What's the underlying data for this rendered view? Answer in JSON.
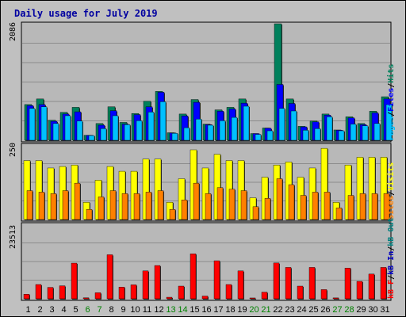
{
  "chart_data": [
    {
      "type": "bar",
      "title": "Daily usage for July 2019",
      "ymax_label": "2086",
      "ylim": [
        0,
        2086
      ],
      "legend": {
        "hits": "Hits",
        "files": "Files",
        "pages": "Pages",
        "sep1": "/",
        "sep2": "/"
      },
      "colors": {
        "hits": "#00805c",
        "files": "#0000ff",
        "pages": "#00c0ff"
      },
      "categories": [
        "1",
        "2",
        "3",
        "4",
        "5",
        "6",
        "7",
        "8",
        "9",
        "10",
        "11",
        "12",
        "13",
        "14",
        "15",
        "16",
        "17",
        "18",
        "19",
        "20",
        "21",
        "22",
        "23",
        "24",
        "25",
        "26",
        "27",
        "28",
        "29",
        "30",
        "31"
      ],
      "weekend_days": [
        "6",
        "7",
        "13",
        "14",
        "20",
        "21",
        "27",
        "28"
      ],
      "series": [
        {
          "name": "Hits",
          "key": "hits",
          "values": [
            640,
            740,
            360,
            500,
            590,
            90,
            300,
            600,
            320,
            480,
            700,
            875,
            135,
            470,
            730,
            290,
            545,
            590,
            740,
            120,
            220,
            2086,
            740,
            250,
            345,
            470,
            185,
            420,
            300,
            520,
            780
          ]
        },
        {
          "name": "Files",
          "key": "files",
          "values": [
            620,
            640,
            340,
            470,
            510,
            90,
            270,
            530,
            290,
            460,
            600,
            860,
            130,
            435,
            680,
            280,
            520,
            560,
            665,
            120,
            215,
            1000,
            660,
            240,
            330,
            450,
            180,
            400,
            280,
            490,
            740
          ]
        },
        {
          "name": "Pages",
          "key": "pages",
          "values": [
            570,
            600,
            300,
            440,
            345,
            85,
            210,
            440,
            280,
            350,
            505,
            690,
            125,
            225,
            380,
            270,
            350,
            410,
            610,
            105,
            170,
            570,
            525,
            180,
            210,
            420,
            170,
            290,
            260,
            300,
            640
          ]
        }
      ]
    },
    {
      "type": "bar",
      "ymax_label": "250",
      "ylim": [
        0,
        250
      ],
      "legend": {
        "visits": "Visits",
        "sites": "Sites",
        "sep": "/"
      },
      "colors": {
        "visits": "#ffff00",
        "sites": "#ff8000"
      },
      "categories": [
        "1",
        "2",
        "3",
        "4",
        "5",
        "6",
        "7",
        "8",
        "9",
        "10",
        "11",
        "12",
        "13",
        "14",
        "15",
        "16",
        "17",
        "18",
        "19",
        "20",
        "21",
        "22",
        "23",
        "24",
        "25",
        "26",
        "27",
        "28",
        "29",
        "30",
        "31"
      ],
      "series": [
        {
          "name": "Visits",
          "key": "visits",
          "values": [
            198,
            198,
            173,
            178,
            183,
            58,
            132,
            178,
            162,
            162,
            203,
            203,
            58,
            137,
            234,
            173,
            219,
            198,
            198,
            73,
            142,
            183,
            193,
            142,
            173,
            239,
            58,
            183,
            209,
            209,
            209
          ]
        },
        {
          "name": "Sites",
          "key": "sites",
          "values": [
            97,
            92,
            87,
            97,
            122,
            34,
            76,
            97,
            87,
            87,
            92,
            97,
            34,
            66,
            122,
            87,
            107,
            102,
            97,
            43,
            71,
            137,
            117,
            81,
            92,
            92,
            39,
            81,
            87,
            87,
            87
          ]
        }
      ]
    },
    {
      "type": "bar",
      "ymax_label": "23513",
      "ylim": [
        0,
        23513
      ],
      "legend": {
        "kbf": "kB F",
        "kbin": "kB In",
        "kbout": "kB Out",
        "sep1": "/",
        "sep2": "/"
      },
      "colors": {
        "kbf": "#ff0000",
        "kbin": "#0000c0",
        "kbout": "#008080"
      },
      "categories": [
        "1",
        "2",
        "3",
        "4",
        "5",
        "6",
        "7",
        "8",
        "9",
        "10",
        "11",
        "12",
        "13",
        "14",
        "15",
        "16",
        "17",
        "18",
        "19",
        "20",
        "21",
        "22",
        "23",
        "24",
        "25",
        "26",
        "27",
        "28",
        "29",
        "30",
        "31"
      ],
      "series": [
        {
          "name": "kB F",
          "key": "kbf",
          "values": [
            1450,
            4500,
            3600,
            4100,
            11250,
            300,
            1900,
            13900,
            3700,
            4400,
            8800,
            10500,
            490,
            4000,
            14200,
            860,
            12000,
            4500,
            8800,
            260,
            2100,
            11300,
            9900,
            4000,
            9900,
            2900,
            280,
            9700,
            5500,
            7800,
            9900
          ]
        }
      ]
    }
  ]
}
